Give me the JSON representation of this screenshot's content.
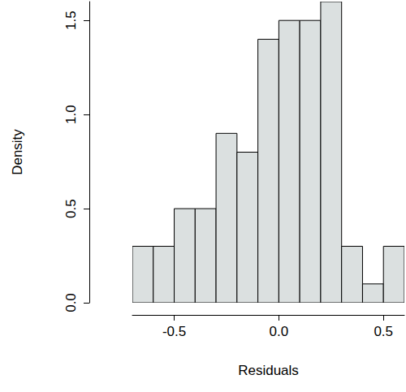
{
  "chart_data": {
    "type": "histogram",
    "x_label": "Residuals",
    "y_label": "Density",
    "bins": [
      -0.7,
      -0.6,
      -0.5,
      -0.4,
      -0.3,
      -0.2,
      -0.1,
      0,
      0.1,
      0.2,
      0.3,
      0.4,
      0.5,
      0.6
    ],
    "values": [
      0.3,
      0.3,
      0.5,
      0.5,
      0.9,
      0.8,
      1.4,
      1.5,
      1.5,
      1.6,
      0.3,
      0.1,
      0.3
    ],
    "color": "#dbe0e0",
    "xlim": [
      -0.7,
      0.6
    ],
    "ylim": [
      0,
      1.6
    ],
    "xticks": [
      -0.5,
      {
        "value": 0,
        "label": "0.0"
      },
      0.5
    ],
    "yticks": [
      {
        "value": 0,
        "label": "0.0"
      },
      0.5,
      {
        "value": 1,
        "label": "1.0"
      },
      {
        "value": 1.5,
        "label": "1.5"
      }
    ],
    "grid": false
  }
}
